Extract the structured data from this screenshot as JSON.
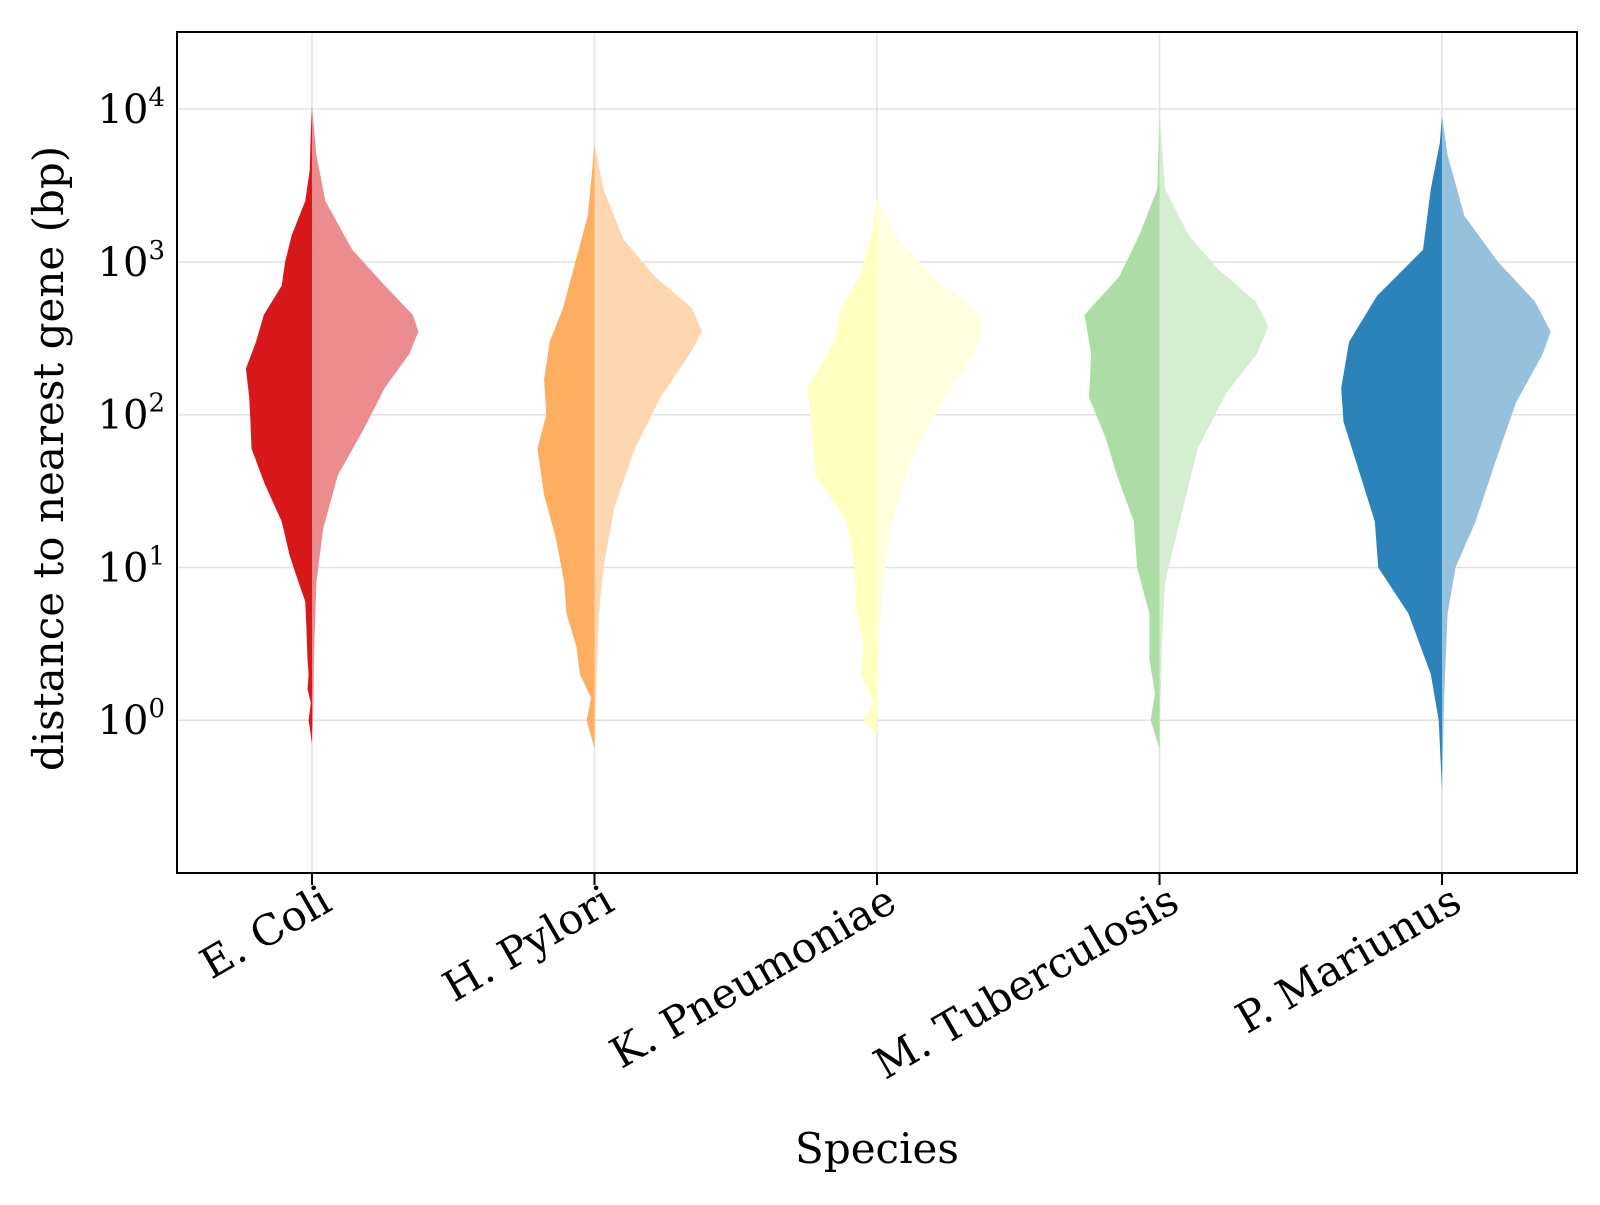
{
  "chart_data": {
    "type": "violin",
    "title": "",
    "xlabel": "Species",
    "ylabel": "distance to nearest gene (bp)",
    "yscale": "log10",
    "ylim": [
      0.1,
      32000
    ],
    "grid": true,
    "legend": "none",
    "y_ticks": [
      {
        "value": 1,
        "base": "10",
        "exp": "0"
      },
      {
        "value": 10,
        "base": "10",
        "exp": "1"
      },
      {
        "value": 100,
        "base": "10",
        "exp": "2"
      },
      {
        "value": 1000,
        "base": "10",
        "exp": "3"
      },
      {
        "value": 10000,
        "base": "10",
        "exp": "4"
      }
    ],
    "categories": [
      "E. Coli",
      "H. Pylori",
      "K. Pneumoniae",
      "M. Tuberculosis",
      "P. Mariunus"
    ],
    "series": [
      {
        "category": "E. Coli",
        "left_color": "#d7191c",
        "right_color": "#eb8c8e",
        "range": [
          0.7,
          10500
        ],
        "left_density": [
          [
            0.7,
            0.0
          ],
          [
            0.9,
            0.02
          ],
          [
            1.0,
            0.03
          ],
          [
            1.3,
            0.01
          ],
          [
            1.6,
            0.04
          ],
          [
            2.0,
            0.03
          ],
          [
            2.5,
            0.04
          ],
          [
            4.0,
            0.05
          ],
          [
            6.0,
            0.06
          ],
          [
            8.0,
            0.12
          ],
          [
            12.0,
            0.2
          ],
          [
            20.0,
            0.27
          ],
          [
            35.0,
            0.42
          ],
          [
            60.0,
            0.54
          ],
          [
            90.0,
            0.55
          ],
          [
            130.0,
            0.56
          ],
          [
            200.0,
            0.59
          ],
          [
            300.0,
            0.5
          ],
          [
            450.0,
            0.43
          ],
          [
            700.0,
            0.27
          ],
          [
            1000.0,
            0.24
          ],
          [
            1500.0,
            0.18
          ],
          [
            2500.0,
            0.06
          ],
          [
            4000.0,
            0.02
          ],
          [
            7000.0,
            0.01
          ],
          [
            10500.0,
            0.0
          ]
        ],
        "right_density": [
          [
            0.7,
            0.0
          ],
          [
            1.0,
            0.01
          ],
          [
            3.0,
            0.02
          ],
          [
            8.0,
            0.04
          ],
          [
            18.0,
            0.1
          ],
          [
            40.0,
            0.23
          ],
          [
            80.0,
            0.46
          ],
          [
            150.0,
            0.65
          ],
          [
            250.0,
            0.87
          ],
          [
            350.0,
            0.95
          ],
          [
            450.0,
            0.9
          ],
          [
            700.0,
            0.65
          ],
          [
            1200.0,
            0.36
          ],
          [
            2500.0,
            0.12
          ],
          [
            5000.0,
            0.04
          ],
          [
            10500.0,
            0.0
          ]
        ]
      },
      {
        "category": "H. Pylori",
        "left_color": "#fdae61",
        "right_color": "#fed6b0",
        "range": [
          0.65,
          6000
        ],
        "left_density": [
          [
            0.65,
            0.0
          ],
          [
            1.0,
            0.07
          ],
          [
            1.4,
            0.03
          ],
          [
            2.0,
            0.13
          ],
          [
            3.0,
            0.16
          ],
          [
            5.0,
            0.25
          ],
          [
            8.0,
            0.27
          ],
          [
            15.0,
            0.34
          ],
          [
            30.0,
            0.45
          ],
          [
            60.0,
            0.51
          ],
          [
            100.0,
            0.43
          ],
          [
            170.0,
            0.45
          ],
          [
            300.0,
            0.4
          ],
          [
            500.0,
            0.28
          ],
          [
            1000.0,
            0.17
          ],
          [
            2000.0,
            0.06
          ],
          [
            4000.0,
            0.02
          ],
          [
            6000.0,
            0.0
          ]
        ],
        "right_density": [
          [
            0.65,
            0.0
          ],
          [
            2.0,
            0.02
          ],
          [
            5.0,
            0.04
          ],
          [
            10.0,
            0.08
          ],
          [
            25.0,
            0.18
          ],
          [
            60.0,
            0.36
          ],
          [
            130.0,
            0.59
          ],
          [
            250.0,
            0.85
          ],
          [
            350.0,
            0.96
          ],
          [
            500.0,
            0.87
          ],
          [
            800.0,
            0.54
          ],
          [
            1400.0,
            0.26
          ],
          [
            3000.0,
            0.08
          ],
          [
            6000.0,
            0.0
          ]
        ]
      },
      {
        "category": "K. Pneumoniae",
        "left_color": "#ffffbf",
        "right_color": "#ffffdf",
        "range": [
          0.8,
          2600
        ],
        "left_density": [
          [
            0.8,
            0.0
          ],
          [
            1.0,
            0.12
          ],
          [
            1.3,
            0.03
          ],
          [
            2.0,
            0.14
          ],
          [
            3.0,
            0.12
          ],
          [
            5.0,
            0.18
          ],
          [
            10.0,
            0.2
          ],
          [
            20.0,
            0.27
          ],
          [
            40.0,
            0.55
          ],
          [
            80.0,
            0.58
          ],
          [
            150.0,
            0.62
          ],
          [
            300.0,
            0.38
          ],
          [
            500.0,
            0.32
          ],
          [
            800.0,
            0.15
          ],
          [
            1500.0,
            0.05
          ],
          [
            2600.0,
            0.0
          ]
        ],
        "right_density": [
          [
            0.8,
            0.0
          ],
          [
            3.0,
            0.02
          ],
          [
            8.0,
            0.05
          ],
          [
            20.0,
            0.14
          ],
          [
            50.0,
            0.3
          ],
          [
            110.0,
            0.55
          ],
          [
            250.0,
            0.87
          ],
          [
            380.0,
            0.95
          ],
          [
            500.0,
            0.86
          ],
          [
            800.0,
            0.5
          ],
          [
            1400.0,
            0.2
          ],
          [
            2600.0,
            0.0
          ]
        ]
      },
      {
        "category": "M. Tuberculosis",
        "left_color": "#abdda4",
        "right_color": "#d5eed1",
        "range": [
          0.65,
          9500
        ],
        "left_density": [
          [
            0.65,
            0.0
          ],
          [
            1.0,
            0.08
          ],
          [
            1.5,
            0.04
          ],
          [
            2.5,
            0.09
          ],
          [
            5.0,
            0.09
          ],
          [
            10.0,
            0.2
          ],
          [
            20.0,
            0.23
          ],
          [
            40.0,
            0.38
          ],
          [
            70.0,
            0.48
          ],
          [
            130.0,
            0.63
          ],
          [
            250.0,
            0.61
          ],
          [
            450.0,
            0.67
          ],
          [
            800.0,
            0.36
          ],
          [
            1500.0,
            0.18
          ],
          [
            3000.0,
            0.02
          ],
          [
            9500.0,
            0.0
          ]
        ],
        "right_density": [
          [
            0.65,
            0.0
          ],
          [
            3.0,
            0.02
          ],
          [
            8.0,
            0.05
          ],
          [
            20.0,
            0.18
          ],
          [
            60.0,
            0.34
          ],
          [
            140.0,
            0.6
          ],
          [
            250.0,
            0.87
          ],
          [
            380.0,
            0.97
          ],
          [
            550.0,
            0.86
          ],
          [
            900.0,
            0.52
          ],
          [
            1500.0,
            0.26
          ],
          [
            3000.0,
            0.05
          ],
          [
            9500.0,
            0.0
          ]
        ]
      },
      {
        "category": "P. Mariunus",
        "left_color": "#2b83ba",
        "right_color": "#95c1dd",
        "range": [
          0.35,
          9000
        ],
        "left_density": [
          [
            0.35,
            0.0
          ],
          [
            1.0,
            0.03
          ],
          [
            2.0,
            0.1
          ],
          [
            5.0,
            0.3
          ],
          [
            10.0,
            0.57
          ],
          [
            20.0,
            0.6
          ],
          [
            45.0,
            0.75
          ],
          [
            90.0,
            0.88
          ],
          [
            150.0,
            0.9
          ],
          [
            300.0,
            0.83
          ],
          [
            600.0,
            0.58
          ],
          [
            1200.0,
            0.17
          ],
          [
            3000.0,
            0.1
          ],
          [
            6000.0,
            0.02
          ],
          [
            9000.0,
            0.0
          ]
        ],
        "right_density": [
          [
            0.35,
            0.0
          ],
          [
            1.5,
            0.02
          ],
          [
            5.0,
            0.05
          ],
          [
            10.0,
            0.12
          ],
          [
            20.0,
            0.3
          ],
          [
            50.0,
            0.48
          ],
          [
            120.0,
            0.66
          ],
          [
            250.0,
            0.9
          ],
          [
            350.0,
            0.97
          ],
          [
            550.0,
            0.83
          ],
          [
            1000.0,
            0.5
          ],
          [
            2000.0,
            0.2
          ],
          [
            5000.0,
            0.05
          ],
          [
            9000.0,
            0.0
          ]
        ]
      }
    ]
  }
}
